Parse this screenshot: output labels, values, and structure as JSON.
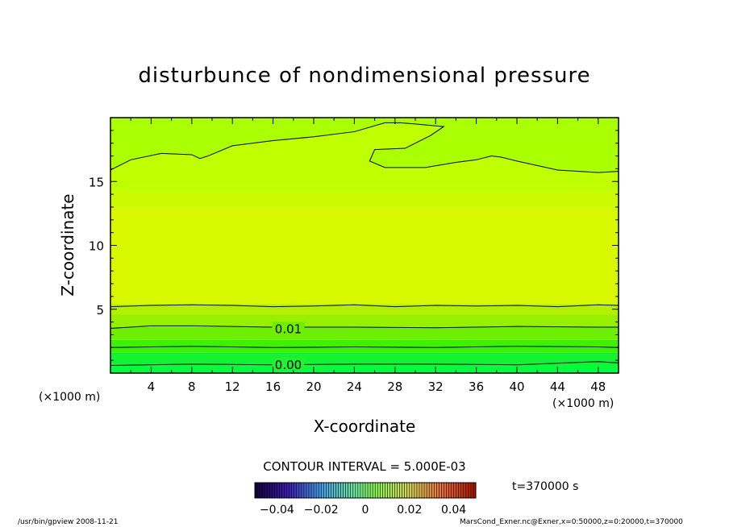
{
  "chart_data": {
    "type": "contour",
    "title": "disturbunce of nondimensional pressure",
    "xlabel": "X-coordinate",
    "ylabel": "Z-coordinate",
    "x_unit_left": "(×1000 m)",
    "x_unit_right": "(×1000 m)",
    "xlim": [
      0,
      50
    ],
    "ylim": [
      0,
      20
    ],
    "x_ticks": [
      4,
      8,
      12,
      16,
      20,
      24,
      28,
      32,
      36,
      40,
      44,
      48
    ],
    "y_ticks": [
      5,
      10,
      15
    ],
    "contour_interval_text": "CONTOUR INTERVAL = 5.000E-03",
    "contour_labels": [
      {
        "text": "0.01",
        "x": 17.5,
        "z": 3.5
      },
      {
        "text": "0.00",
        "x": 17.5,
        "z": 0.7
      }
    ],
    "bands": [
      {
        "z_top": 0.6,
        "color": "#00ff3c"
      },
      {
        "z_top": 1.6,
        "color": "#14f234"
      },
      {
        "z_top": 2.6,
        "color": "#3cf200"
      },
      {
        "z_top": 3.6,
        "color": "#6cf000"
      },
      {
        "z_top": 4.6,
        "color": "#96f000"
      },
      {
        "z_top": 5.4,
        "color": "#b4f000"
      },
      {
        "z_top": 13.0,
        "color": "#d8f800"
      },
      {
        "z_top": 14.2,
        "color": "#cafb00"
      },
      {
        "z_top": 20.0,
        "color": "#bfff00"
      }
    ],
    "contour_lines": [
      {
        "x": [
          0,
          8,
          16,
          24,
          32,
          40,
          48,
          50
        ],
        "z": [
          0.6,
          0.7,
          0.65,
          0.7,
          0.7,
          0.65,
          0.9,
          0.8
        ]
      },
      {
        "x": [
          0,
          8,
          16,
          24,
          32,
          40,
          48,
          50
        ],
        "z": [
          2.0,
          2.1,
          2.0,
          2.05,
          2.0,
          2.1,
          2.05,
          2.0
        ]
      },
      {
        "x": [
          0,
          4,
          8,
          16,
          24,
          32,
          40,
          48,
          50
        ],
        "z": [
          3.5,
          3.7,
          3.7,
          3.6,
          3.6,
          3.55,
          3.65,
          3.6,
          3.6
        ]
      },
      {
        "x": [
          0,
          4,
          8,
          12,
          16,
          20,
          24,
          28,
          32,
          36,
          40,
          44,
          48,
          50
        ],
        "z": [
          5.2,
          5.3,
          5.35,
          5.3,
          5.2,
          5.25,
          5.35,
          5.2,
          5.3,
          5.25,
          5.3,
          5.2,
          5.35,
          5.3
        ]
      }
    ],
    "upper_contour": {
      "x": [
        0,
        2,
        5,
        8,
        8.8,
        9.6,
        12,
        16,
        20,
        24,
        27,
        28.5,
        30,
        32.8,
        31.5,
        29,
        26,
        25.5,
        27,
        31,
        34,
        36,
        37.5,
        38.5,
        40,
        44,
        48,
        50
      ],
      "z": [
        15.9,
        16.7,
        17.2,
        17.1,
        16.8,
        17.0,
        17.8,
        18.2,
        18.5,
        18.9,
        19.6,
        19.6,
        19.5,
        19.3,
        18.6,
        17.6,
        17.5,
        16.6,
        16.1,
        16.1,
        16.5,
        16.7,
        17.0,
        16.9,
        16.6,
        15.9,
        15.7,
        15.8
      ]
    },
    "time_text": "t=370000 s",
    "colorbar": {
      "tick_labels": [
        "−0.04",
        "−0.02",
        "0",
        "0.02",
        "0.04"
      ],
      "tick_values": [
        -0.04,
        -0.02,
        0,
        0.02,
        0.04
      ],
      "range": [
        -0.05,
        0.05
      ]
    },
    "footer_left": "/usr/bin/gpview   2008-11-21",
    "footer_right": "MarsCond_Exner.nc@Exner,x=0:50000,z=0:20000,t=370000"
  }
}
